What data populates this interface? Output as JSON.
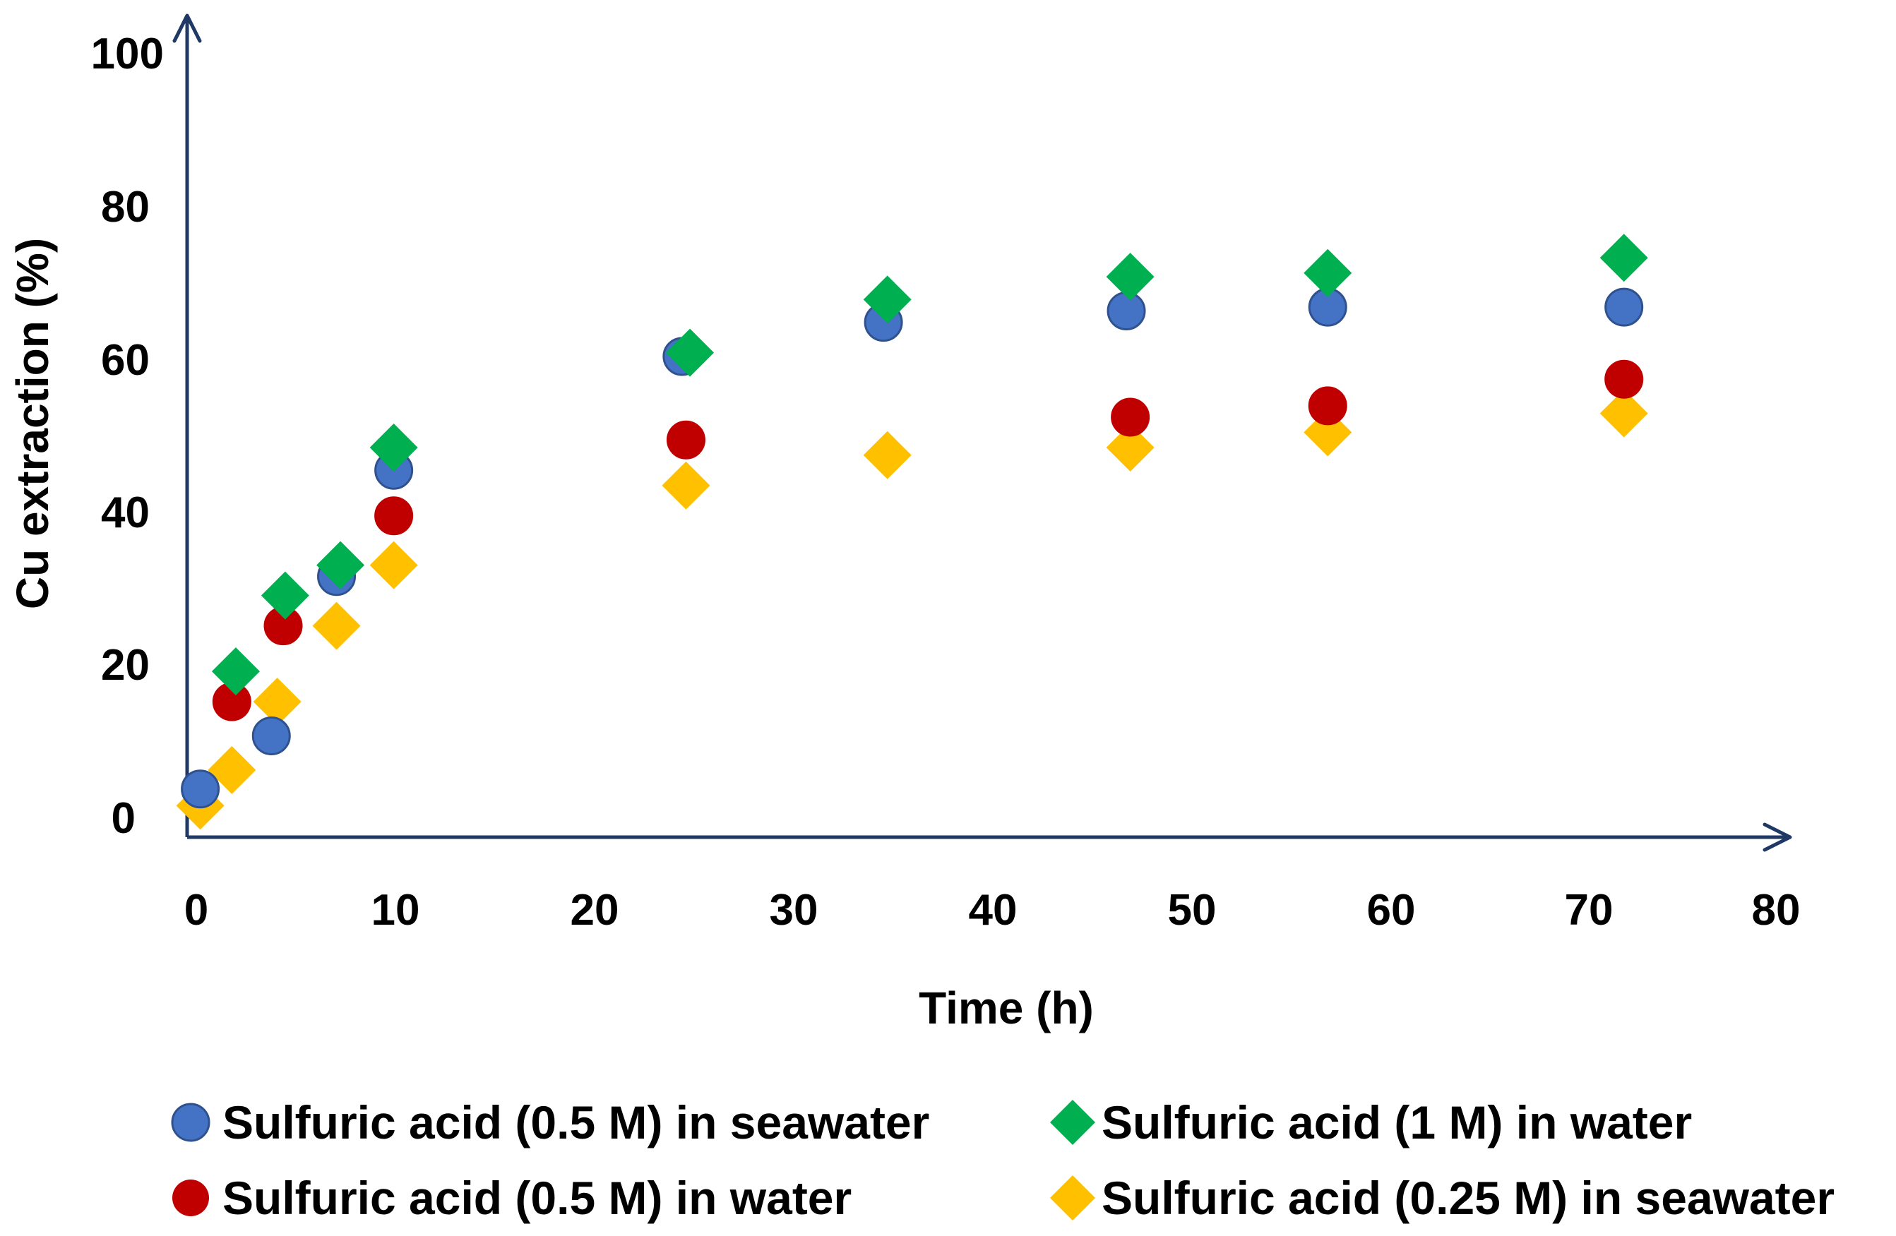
{
  "chart_data": {
    "type": "scatter",
    "title": "",
    "xlabel": "Time (h)",
    "ylabel": "Cu extraction (%)",
    "xlim": [
      0,
      80
    ],
    "ylim": [
      0,
      100
    ],
    "xticks": [
      "0",
      "10",
      "20",
      "30",
      "40",
      "50",
      "60",
      "70",
      "80"
    ],
    "yticks": [
      "0",
      "20",
      "40",
      "60",
      "80",
      "100"
    ],
    "xtick_values": [
      0,
      10,
      20,
      30,
      40,
      50,
      60,
      70,
      80
    ],
    "ytick_values": [
      0,
      20,
      40,
      60,
      80,
      100
    ],
    "grid": false,
    "legend_position": "bottom",
    "axis_color": "#1f3864",
    "series": [
      {
        "name": "Sulfuric acid (0.5 M) in seawater",
        "marker": "circle",
        "color": "#4472c4",
        "x": [
          0.2,
          3.8,
          7.1,
          10.0,
          24.6,
          34.8,
          47.1,
          57.3,
          72.3
        ],
        "y": [
          3,
          10,
          31,
          45,
          60,
          64.5,
          66,
          66.5,
          66.5
        ]
      },
      {
        "name": "Sulfuric acid (0.5 M) in water",
        "marker": "circle",
        "color": "#c00000",
        "x": [
          1.8,
          4.4,
          10.0,
          24.8,
          47.3,
          57.3,
          72.3
        ],
        "y": [
          14.5,
          24.5,
          39,
          49,
          52,
          53.5,
          57
        ]
      },
      {
        "name": "Sulfuric acid (1 M) in water",
        "marker": "diamond",
        "color": "#00b050",
        "x": [
          2.0,
          4.5,
          7.3,
          10.0,
          25.0,
          35.0,
          47.3,
          57.3,
          72.3
        ],
        "y": [
          18.5,
          28.5,
          32.5,
          48,
          60.5,
          67.5,
          70.5,
          71,
          73
        ]
      },
      {
        "name": "Sulfuric acid (0.25 M) in seawater",
        "marker": "diamond",
        "color": "#ffc000",
        "x": [
          0.2,
          1.8,
          4.1,
          7.1,
          10.0,
          24.8,
          35.0,
          47.3,
          57.3,
          72.3
        ],
        "y": [
          0.8,
          5.5,
          14.5,
          24.5,
          32.5,
          43,
          47,
          48,
          50,
          52.5
        ]
      }
    ]
  }
}
